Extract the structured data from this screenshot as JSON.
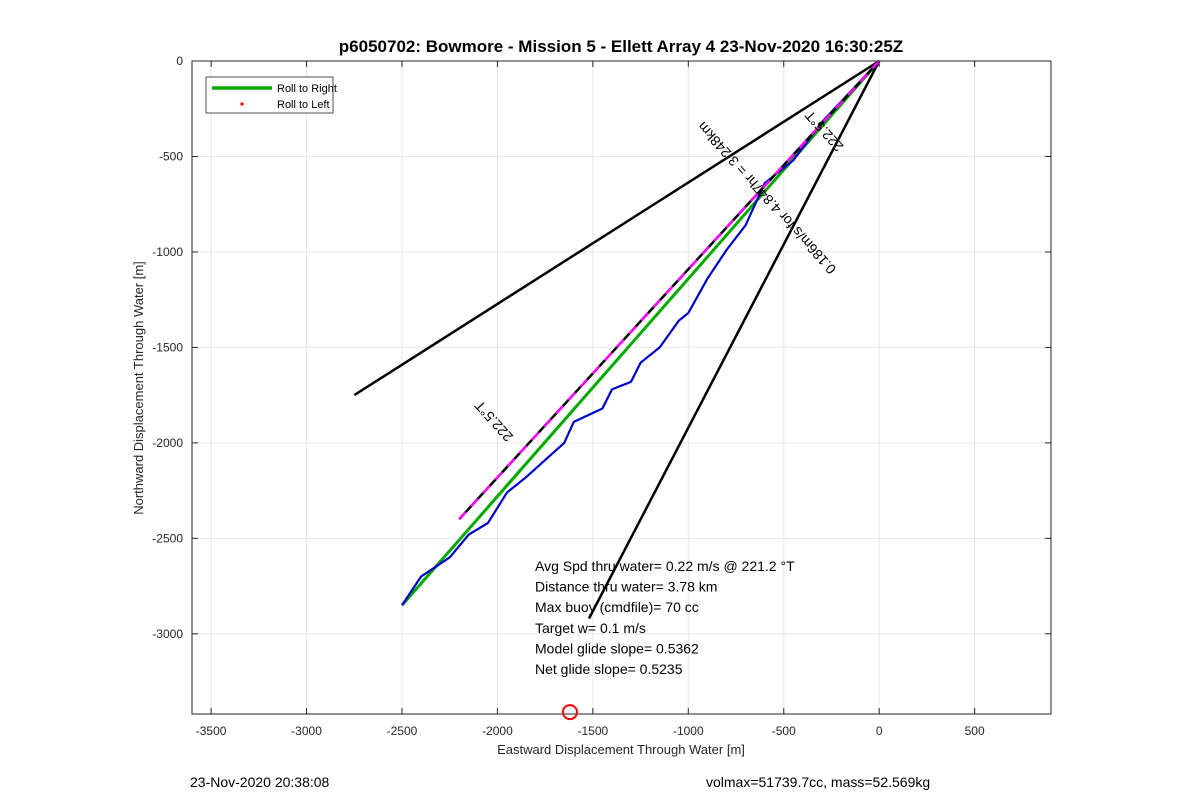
{
  "chart_data": {
    "type": "line",
    "title": "p6050702: Bowmore - Mission 5 - Ellett Array 4 23-Nov-2020 16:30:25Z",
    "xlabel": "Eastward Displacement Through Water [m]",
    "ylabel": "Northward Displacement Through Water [m]",
    "xlim": [
      -3600,
      900
    ],
    "ylim": [
      -3420,
      0
    ],
    "xticks": [
      -3500,
      -3000,
      -2500,
      -2000,
      -1500,
      -1000,
      -500,
      0,
      500
    ],
    "yticks": [
      0,
      -500,
      -1000,
      -1500,
      -2000,
      -2500,
      -3000
    ],
    "grid": true,
    "legend": {
      "placement": "top-left",
      "entries": [
        {
          "name": "Roll to Right",
          "color": "#00aa00",
          "style": "line"
        },
        {
          "name": "Roll to Left",
          "color": "#ff0000",
          "style": "dot"
        }
      ]
    },
    "series": [
      {
        "name": "Roll to Right",
        "color": "#00aa00",
        "x": [
          0,
          -2500
        ],
        "y": [
          0,
          -2850
        ]
      },
      {
        "color": "#0000cc",
        "x": [
          0,
          -300,
          -450,
          -600,
          -700,
          -800,
          -900,
          -1000,
          -1050,
          -1150,
          -1250,
          -1300,
          -1400,
          -1450,
          -1600,
          -1650,
          -1750,
          -1850,
          -1950,
          -2050,
          -2150,
          -2250,
          -2400,
          -2500
        ],
        "y": [
          0,
          -320,
          -520,
          -640,
          -860,
          -990,
          -1140,
          -1320,
          -1360,
          -1500,
          -1580,
          -1680,
          -1720,
          -1820,
          -1890,
          -2000,
          -2090,
          -2180,
          -2260,
          -2420,
          -2480,
          -2600,
          -2700,
          -2850
        ]
      },
      {
        "color": "#000000",
        "x": [
          0,
          -2750
        ],
        "y": [
          0,
          -1750
        ]
      },
      {
        "color": "#000000",
        "x": [
          0,
          -1520
        ],
        "y": [
          0,
          -2920
        ]
      },
      {
        "color": "#000000",
        "dash": "#ff00ff",
        "x": [
          0,
          -2200
        ],
        "y": [
          0,
          -2400
        ]
      }
    ],
    "annotations": [
      {
        "text": "222.5°T",
        "x": -2000,
        "y": -1870,
        "rotation": 228
      },
      {
        "text": "222.5°T",
        "x": -270,
        "y": -350,
        "rotation": 228
      },
      {
        "text": "0.186m/s for 4.847hr = 3.248km",
        "x": -570,
        "y": -700,
        "rotation": 228
      }
    ],
    "marker": {
      "x": -1620,
      "y": -3410,
      "color": "#ff0000"
    },
    "stats": [
      "Avg Spd thru water=  0.22 m/s @ 221.2 °T",
      "Distance thru water=  3.78 km",
      "Max buoy (cmdfile)= 70 cc",
      "Target w= 0.1 m/s",
      "Model glide slope= 0.5362",
      "Net glide slope= 0.5235"
    ]
  },
  "footer": {
    "left": "23-Nov-2020 20:38:08",
    "right": "volmax=51739.7cc, mass=52.569kg"
  }
}
